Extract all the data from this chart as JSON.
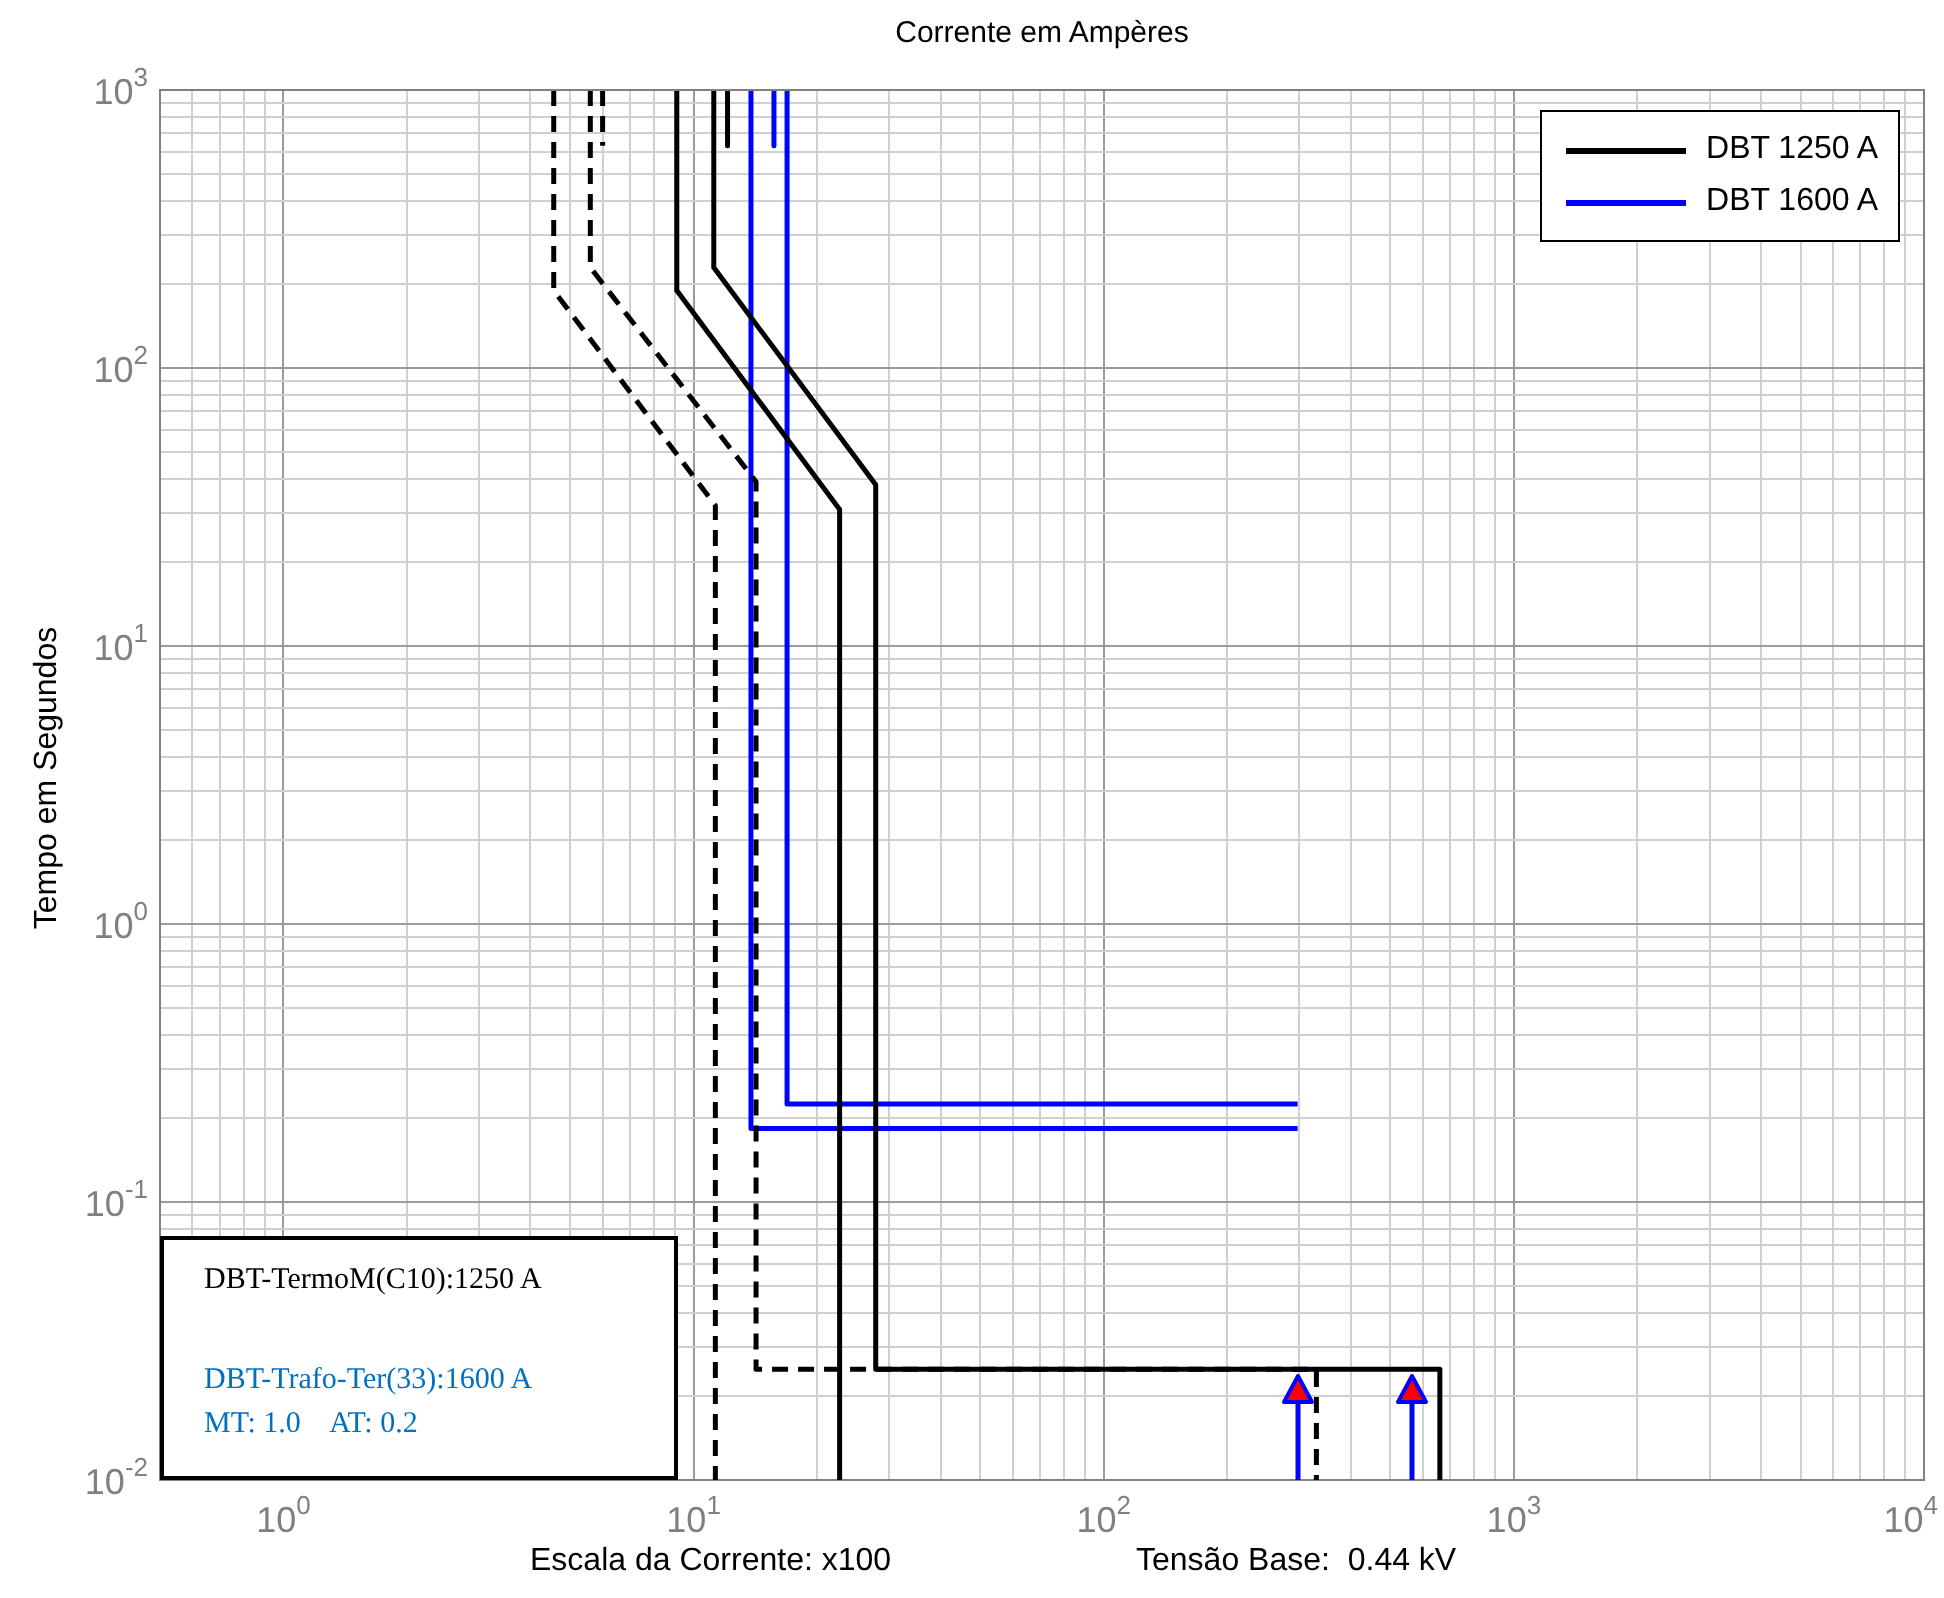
{
  "chart_data": {
    "type": "line",
    "title": "Corrente em Ampères",
    "xlabel": "Escala da Corrente: x100",
    "ylabel": "Tempo em Segundos",
    "annotations": [
      "DBT-TermoM(C10):1250 A",
      "DBT-Trafo-Ter(33):1600 A",
      "MT: 1.0    AT: 0.2",
      "Tensão Base:  0.44 kV"
    ],
    "log": "xy",
    "grid": true,
    "legend": "top right",
    "marker": "none",
    "xlim": [
      0.5,
      10000
    ],
    "ylim": [
      0.01,
      1000
    ],
    "xticks": [
      {
        "value": 0.6,
        "label": null
      },
      {
        "value": 0.7,
        "label": null
      },
      {
        "value": 0.8,
        "label": null
      },
      {
        "value": 0.9,
        "label": null
      },
      {
        "value": 1,
        "label": "10$^{0}$"
      },
      {
        "value": 2,
        "label": null
      },
      {
        "value": 3,
        "label": null
      },
      {
        "value": 4,
        "label": null
      },
      {
        "value": 5,
        "label": null
      },
      {
        "value": 6,
        "label": null
      },
      {
        "value": 7,
        "label": null
      },
      {
        "value": 8,
        "label": null
      },
      {
        "value": 9,
        "label": null
      },
      {
        "value": 10,
        "label": "10$^{1}$"
      },
      {
        "value": 20,
        "label": null
      },
      {
        "value": 30,
        "label": null
      },
      {
        "value": 40,
        "label": null
      },
      {
        "value": 50,
        "label": null
      },
      {
        "value": 60,
        "label": null
      },
      {
        "value": 70,
        "label": null
      },
      {
        "value": 80,
        "label": null
      },
      {
        "value": 90,
        "label": null
      },
      {
        "value": 100,
        "label": "10$^{2}$"
      },
      {
        "value": 200,
        "label": null
      },
      {
        "value": 300,
        "label": null
      },
      {
        "value": 400,
        "label": null
      },
      {
        "value": 500,
        "label": null
      },
      {
        "value": 600,
        "label": null
      },
      {
        "value": 700,
        "label": null
      },
      {
        "value": 800,
        "label": null
      },
      {
        "value": 900,
        "label": null
      },
      {
        "value": 1000,
        "label": "10$^{3}$"
      },
      {
        "value": 2000,
        "label": null
      },
      {
        "value": 3000,
        "label": null
      },
      {
        "value": 4000,
        "label": null
      },
      {
        "value": 5000,
        "label": null
      },
      {
        "value": 6000,
        "label": null
      },
      {
        "value": 7000,
        "label": null
      },
      {
        "value": 8000,
        "label": null
      },
      {
        "value": 9000,
        "label": null
      },
      {
        "value": 10000,
        "label": "10$^{4}$"
      }
    ],
    "yticks": [
      {
        "value": 0.01,
        "label": "10$^{-2}$"
      },
      {
        "value": 0.02,
        "label": null
      },
      {
        "value": 0.03,
        "label": null
      },
      {
        "value": 0.04,
        "label": null
      },
      {
        "value": 0.05,
        "label": null
      },
      {
        "value": 0.06,
        "label": null
      },
      {
        "value": 0.07,
        "label": null
      },
      {
        "value": 0.08,
        "label": null
      },
      {
        "value": 0.09,
        "label": null
      },
      {
        "value": 0.1,
        "label": "10$^{-1}$"
      },
      {
        "value": 0.2,
        "label": null
      },
      {
        "value": 0.3,
        "label": null
      },
      {
        "value": 0.4,
        "label": null
      },
      {
        "value": 0.5,
        "label": null
      },
      {
        "value": 0.6,
        "label": null
      },
      {
        "value": 0.7,
        "label": null
      },
      {
        "value": 0.8,
        "label": null
      },
      {
        "value": 0.9,
        "label": null
      },
      {
        "value": 1,
        "label": "10$^{0}$"
      },
      {
        "value": 2,
        "label": null
      },
      {
        "value": 3,
        "label": null
      },
      {
        "value": 4,
        "label": null
      },
      {
        "value": 5,
        "label": null
      },
      {
        "value": 6,
        "label": null
      },
      {
        "value": 7,
        "label": null
      },
      {
        "value": 8,
        "label": null
      },
      {
        "value": 9,
        "label": null
      },
      {
        "value": 10,
        "label": "10$^{1}$"
      },
      {
        "value": 20,
        "label": null
      },
      {
        "value": 30,
        "label": null
      },
      {
        "value": 40,
        "label": null
      },
      {
        "value": 50,
        "label": null
      },
      {
        "value": 60,
        "label": null
      },
      {
        "value": 70,
        "label": null
      },
      {
        "value": 80,
        "label": null
      },
      {
        "value": 90,
        "label": null
      },
      {
        "value": 100,
        "label": "10$^{2}$"
      },
      {
        "value": 200,
        "label": null
      },
      {
        "value": 300,
        "label": null
      },
      {
        "value": 400,
        "label": null
      },
      {
        "value": 500,
        "label": null
      },
      {
        "value": 600,
        "label": null
      },
      {
        "value": 700,
        "label": null
      },
      {
        "value": 800,
        "label": null
      },
      {
        "value": 900,
        "label": null
      },
      {
        "value": 1000,
        "label": "10$^{3}$"
      }
    ],
    "series": [
      {
        "name": "DBT 1250 A",
        "color": "#000000",
        "line_style": "solid",
        "x": [
          9.1,
          9.1,
          22.7,
          22.7
        ],
        "values": [
          1000,
          190,
          31,
          0.01
        ]
      },
      {
        "color": "#000000",
        "line_style": "solid",
        "x": [
          11.2,
          11.2,
          27.8,
          27.8,
          660,
          660
        ],
        "values": [
          1000,
          230,
          38,
          0.025,
          0.025,
          0.01
        ]
      },
      {
        "color": "#000000",
        "line_style": "solid",
        "x": [
          12.1,
          12.1
        ],
        "values": [
          1000,
          630
        ]
      },
      {
        "color": "#000000",
        "line_style": "dashed",
        "x": [
          4.56,
          4.56,
          11.3,
          11.3
        ],
        "values": [
          1000,
          190,
          32,
          0.01
        ]
      },
      {
        "color": "#000000",
        "line_style": "dashed",
        "x": [
          5.6,
          5.6,
          14.2,
          14.2,
          330,
          330
        ],
        "values": [
          1000,
          230,
          39,
          0.025,
          0.025,
          0.01
        ]
      },
      {
        "color": "#000000",
        "line_style": "dashed",
        "x": [
          6.0,
          6.0
        ],
        "values": [
          1000,
          630
        ]
      },
      {
        "name": "DBT 1600 A",
        "color": "#0000ff",
        "line_style": "solid",
        "x": [
          13.8,
          13.8,
          297
        ],
        "values": [
          1000,
          0.184,
          0.184
        ]
      },
      {
        "color": "#0000ff",
        "line_style": "solid",
        "x": [
          16.9,
          16.9,
          297
        ],
        "values": [
          1000,
          0.225,
          0.225
        ]
      },
      {
        "color": "#0000ff",
        "line_style": "solid",
        "x": [
          15.7,
          15.7
        ],
        "values": [
          1000,
          630
        ]
      }
    ]
  }
}
